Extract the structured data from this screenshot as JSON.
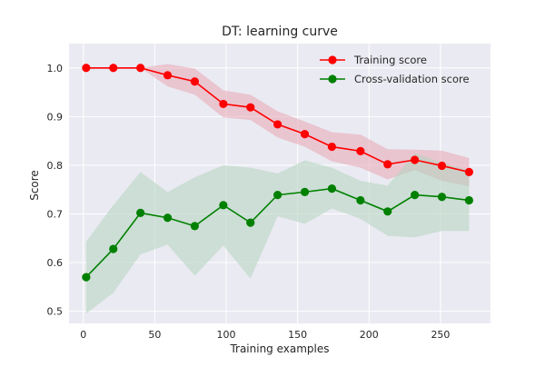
{
  "chart_data": {
    "type": "line",
    "title": "DT: learning curve",
    "xlabel": "Training examples",
    "ylabel": "Score",
    "xlim": [
      -10,
      285
    ],
    "ylim": [
      0.475,
      1.05
    ],
    "xticks": [
      0,
      50,
      100,
      150,
      200,
      250
    ],
    "yticks": [
      0.5,
      0.6,
      0.7,
      0.8,
      0.9,
      1.0
    ],
    "ytick_labels": [
      "0.5",
      "0.6",
      "0.7",
      "0.8",
      "0.9",
      "1.0"
    ],
    "grid": true,
    "legend_position": "top-right",
    "x": [
      2,
      21,
      40,
      59,
      78,
      98,
      117,
      136,
      155,
      174,
      194,
      213,
      232,
      251,
      270
    ],
    "series": [
      {
        "name": "Training score",
        "color": "#ff0000",
        "band_color": "#e8a6b4",
        "values": [
          1.0,
          1.0,
          1.0,
          0.985,
          0.972,
          0.926,
          0.919,
          0.884,
          0.864,
          0.838,
          0.829,
          0.802,
          0.811,
          0.799,
          0.786
        ],
        "band_lower": [
          1.0,
          1.0,
          1.0,
          0.962,
          0.945,
          0.898,
          0.893,
          0.857,
          0.838,
          0.808,
          0.795,
          0.771,
          0.79,
          0.768,
          0.757
        ],
        "band_upper": [
          1.0,
          1.0,
          1.0,
          1.008,
          0.999,
          0.954,
          0.945,
          0.911,
          0.89,
          0.868,
          0.863,
          0.833,
          0.832,
          0.83,
          0.815
        ]
      },
      {
        "name": "Cross-validation score",
        "color": "#008000",
        "band_color": "#b2d4bd",
        "values": [
          0.57,
          0.628,
          0.702,
          0.692,
          0.675,
          0.718,
          0.682,
          0.739,
          0.745,
          0.752,
          0.728,
          0.705,
          0.739,
          0.735,
          0.728
        ],
        "band_lower": [
          0.495,
          0.538,
          0.617,
          0.637,
          0.573,
          0.635,
          0.567,
          0.695,
          0.68,
          0.711,
          0.69,
          0.655,
          0.652,
          0.665,
          0.665
        ],
        "band_upper": [
          0.643,
          0.718,
          0.786,
          0.745,
          0.775,
          0.8,
          0.795,
          0.783,
          0.81,
          0.795,
          0.768,
          0.758,
          0.825,
          0.805,
          0.79
        ]
      }
    ]
  }
}
